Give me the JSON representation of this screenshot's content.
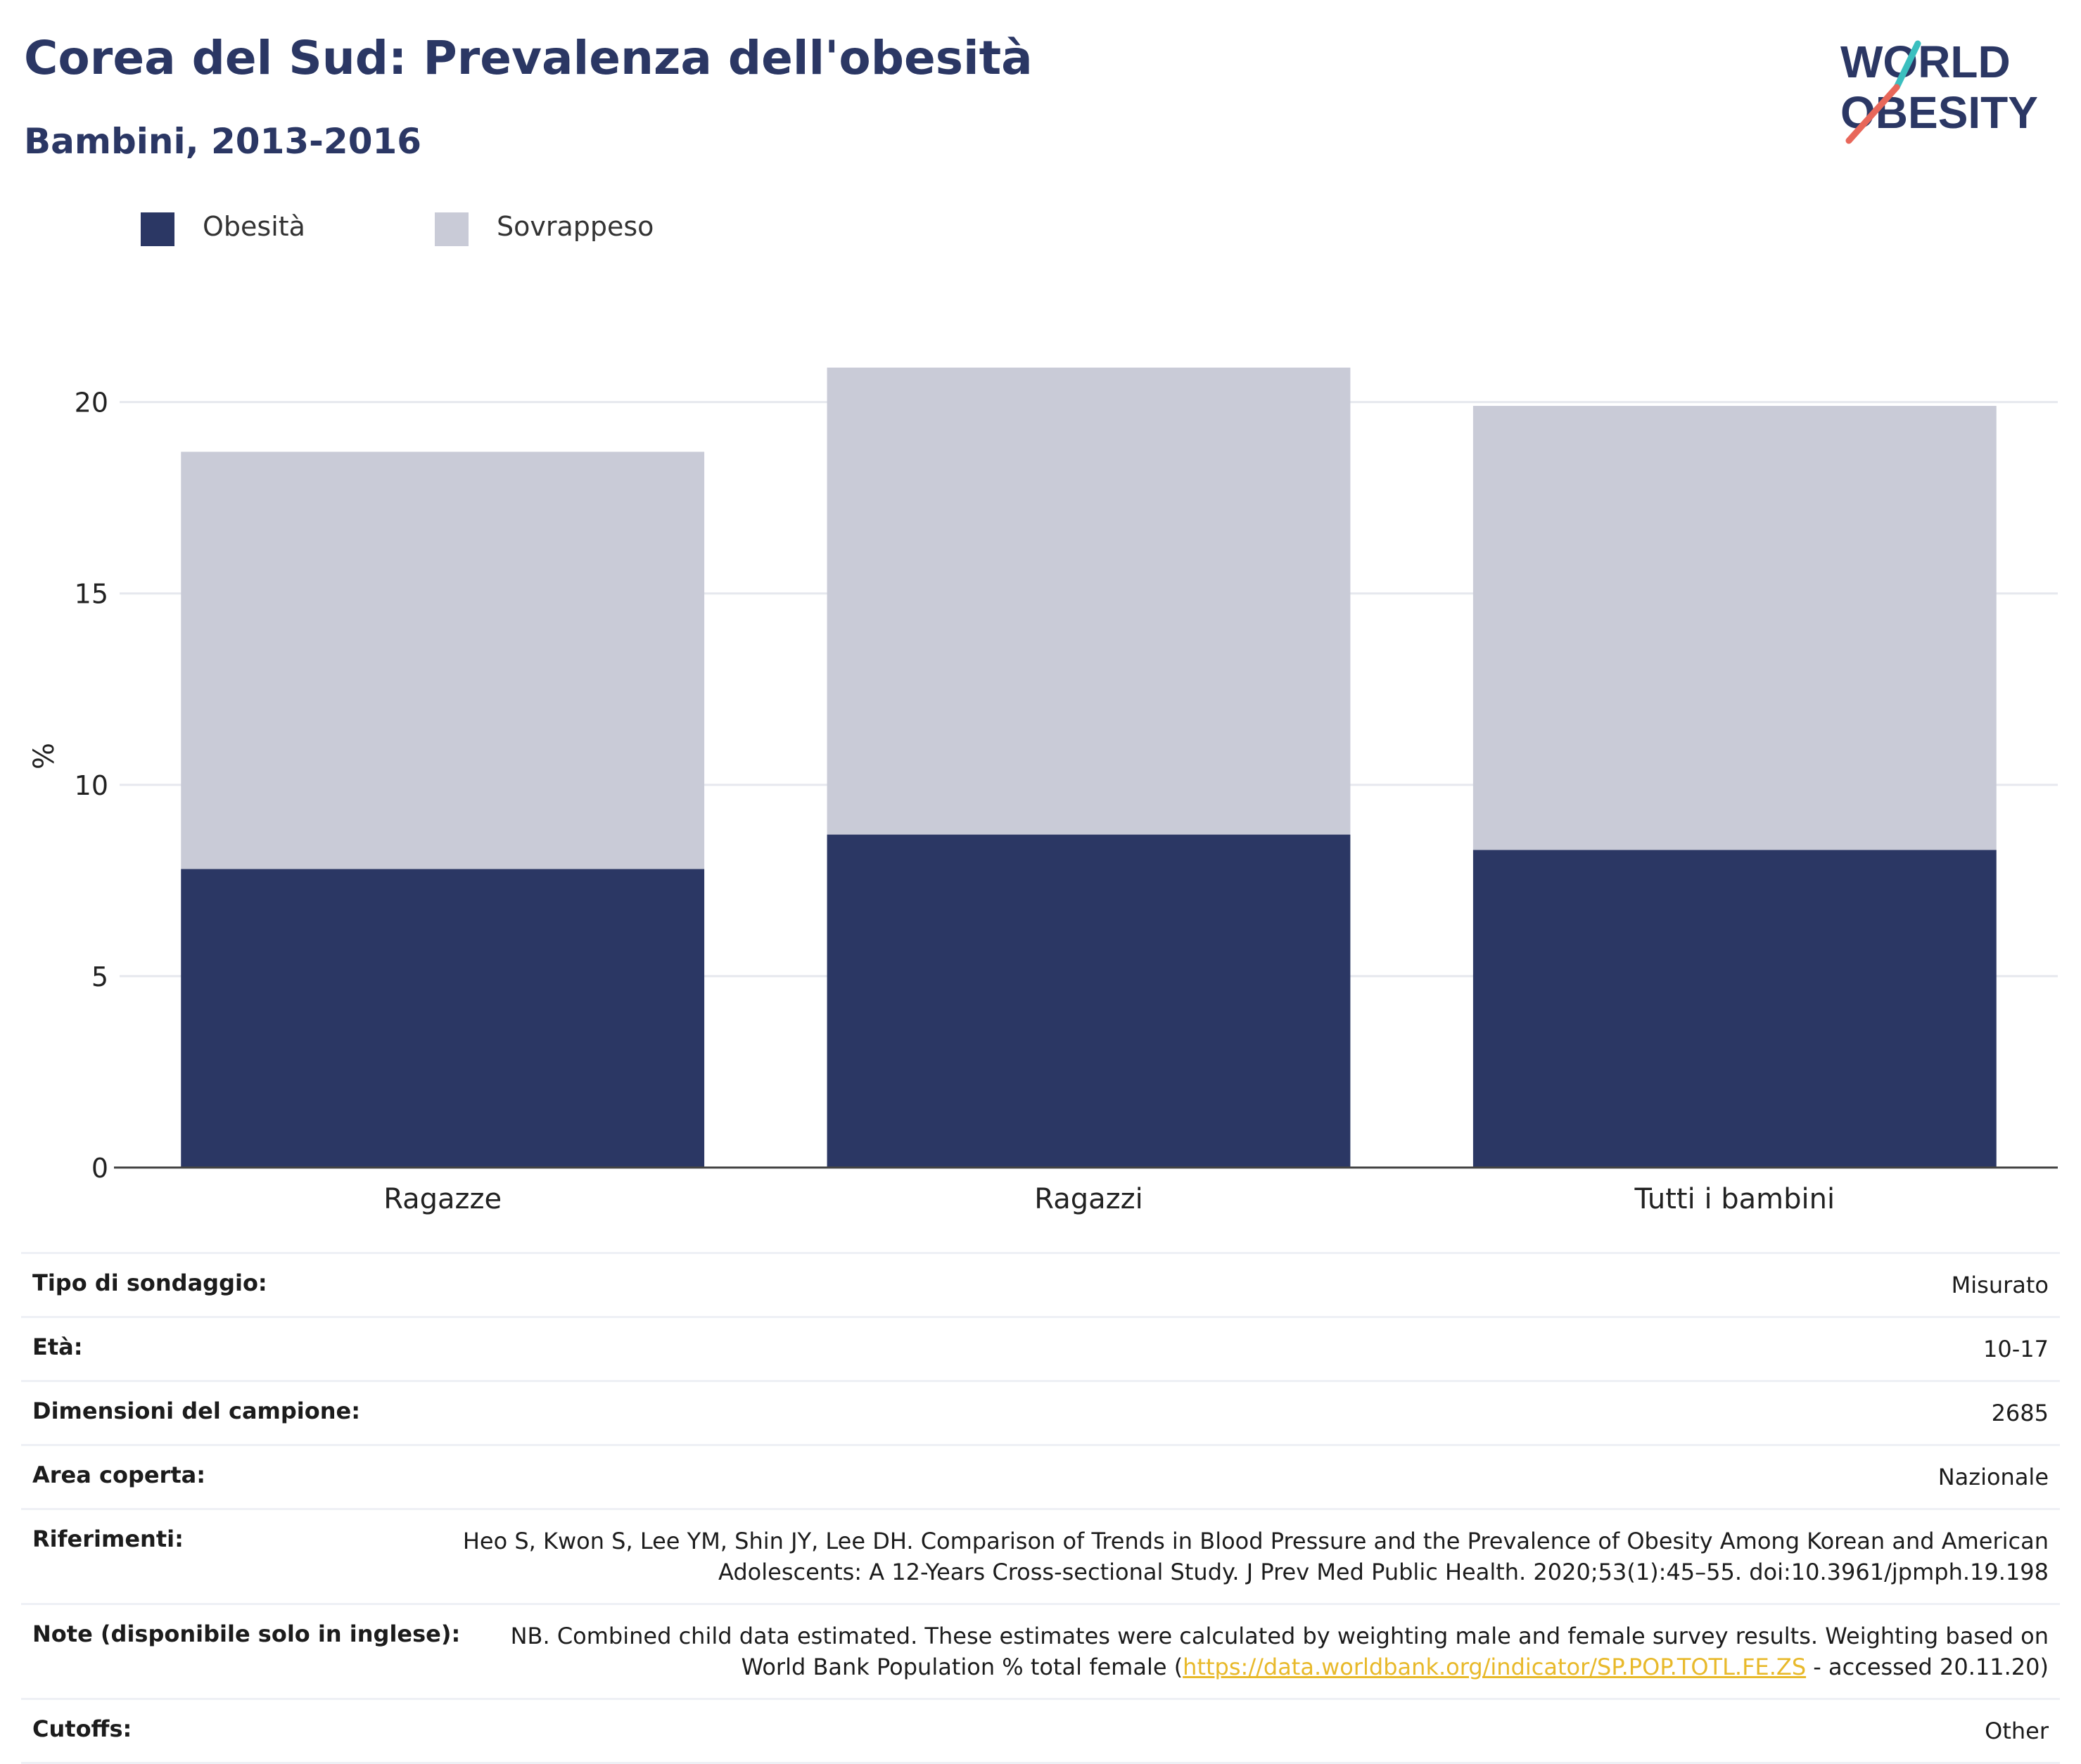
{
  "title": "Corea del Sud: Prevalenza dell'obesità",
  "subtitle": "Bambini, 2013-2016",
  "logo": {
    "line1": "WORLD",
    "line2": "OBESITY"
  },
  "legend": [
    {
      "label": "Obesità",
      "color": "#2b3764"
    },
    {
      "label": "Sovrappeso",
      "color": "#c9cbd7"
    }
  ],
  "chart_data": {
    "type": "bar",
    "stacked": true,
    "categories": [
      "Ragazze",
      "Ragazzi",
      "Tutti i bambini"
    ],
    "series": [
      {
        "name": "Obesità",
        "values": [
          7.8,
          8.7,
          8.3
        ],
        "color": "#2b3764"
      },
      {
        "name": "Sovrappeso",
        "values": [
          10.9,
          12.2,
          11.6
        ],
        "color": "#c9cbd7"
      }
    ],
    "ylabel": "%",
    "ylim": [
      0,
      21.5
    ],
    "yticks": [
      0,
      5,
      10,
      15,
      20
    ],
    "grid": true,
    "legend_position": "top-left"
  },
  "meta": [
    {
      "key": "Tipo di sondaggio:",
      "value": "Misurato"
    },
    {
      "key": "Età:",
      "value": "10-17"
    },
    {
      "key": "Dimensioni del campione:",
      "value": "2685"
    },
    {
      "key": "Area coperta:",
      "value": "Nazionale"
    },
    {
      "key": "Riferimenti:",
      "value": "Heo S, Kwon S, Lee YM, Shin JY, Lee DH. Comparison of Trends in Blood Pressure and the Prevalence of Obesity Among Korean and American Adolescents: A 12-Years Cross-sectional Study. J Prev Med Public Health. 2020;53(1):45–55. doi:10.3961/jpmph.19.198"
    },
    {
      "key": "Note (disponibile solo in inglese):",
      "value_before": "NB. Combined child data estimated. These estimates were calculated by weighting male and female survey results. Weighting based on World Bank Population % total female (",
      "link": "https://data.worldbank.org/indicator/SP.POP.TOTL.FE.ZS",
      "value_after": " - accessed 20.11.20)"
    },
    {
      "key": "Cutoffs:",
      "value": "Other"
    }
  ]
}
